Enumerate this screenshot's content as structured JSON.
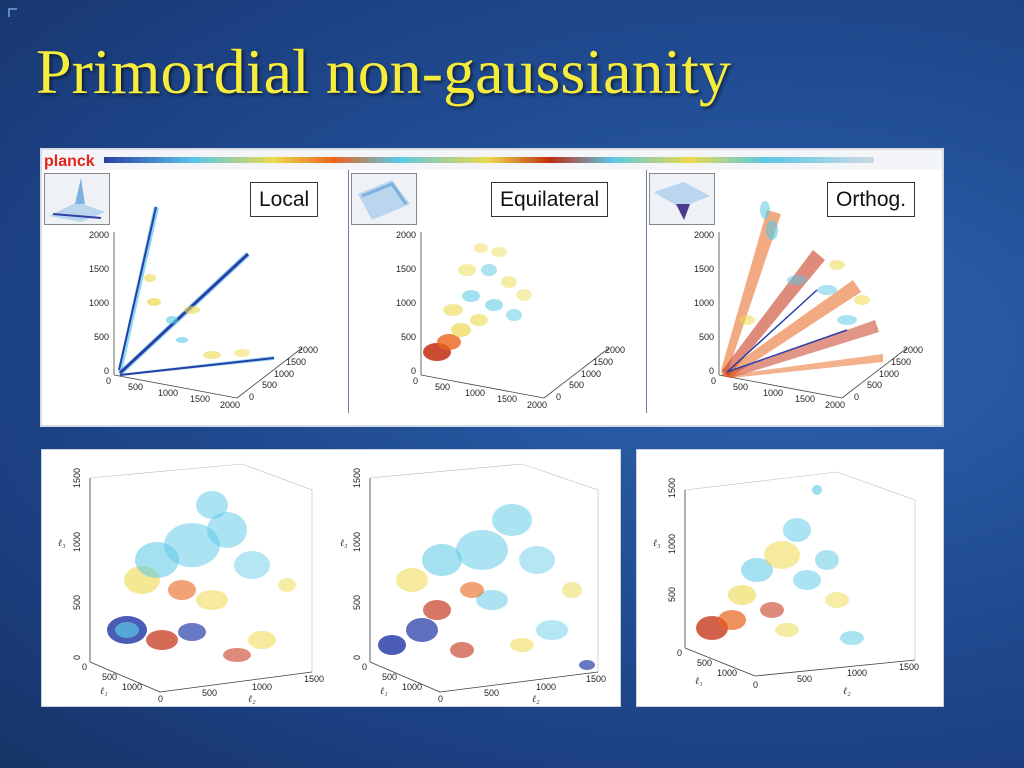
{
  "slide": {
    "title": "Primordial non-gaussianity",
    "logo_text": "planck"
  },
  "top_panels": [
    {
      "label": "Local",
      "thumb_icon": "local-shape-thumbnail-icon"
    },
    {
      "label": "Equilateral",
      "thumb_icon": "equilateral-shape-thumbnail-icon"
    },
    {
      "label": "Orthog.",
      "thumb_icon": "orthogonal-shape-thumbnail-icon"
    }
  ],
  "top_axes": {
    "vertical_ticks": [
      "0",
      "500",
      "1000",
      "1500",
      "2000"
    ],
    "front_ticks": [
      "0",
      "500",
      "1000",
      "1500",
      "2000"
    ],
    "depth_ticks": [
      "0",
      "500",
      "1000",
      "1500",
      "2000"
    ]
  },
  "bottom_axes": {
    "vertical_ticks": [
      "0",
      "500",
      "1000",
      "1500"
    ],
    "front_ticks": [
      "0",
      "500",
      "1000",
      "1500"
    ],
    "depth_ticks": [
      "0",
      "500",
      "1000"
    ],
    "vertical_label": "ℓ₃",
    "front_label": "ℓ₂",
    "depth_label": "ℓ₁"
  },
  "colors": {
    "title": "#f6ec3c",
    "background": "#224f96",
    "logo_red": "#e2241a",
    "blob_blue": "#2a3fa8",
    "blob_cyan": "#58c8e6",
    "blob_yellow": "#ecd94e",
    "blob_orange": "#e8641c",
    "blob_red": "#c22c10"
  }
}
